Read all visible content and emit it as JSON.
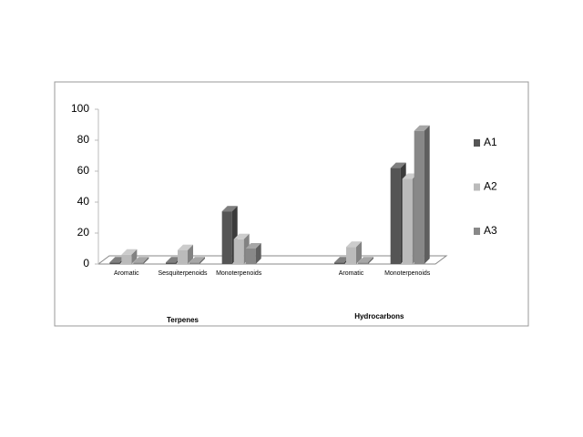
{
  "chart_data": {
    "type": "bar3d",
    "categories": [
      "Aromatic",
      "Sesquiterpenoids",
      "Monoterpenoids",
      null,
      "Aromatic",
      "Monoterpenoids"
    ],
    "groups": [
      "Terpenes",
      "Hydrocarbons"
    ],
    "series": [
      {
        "name": "A1",
        "color": "#555555",
        "values": [
          1,
          1,
          34,
          null,
          1,
          62
        ]
      },
      {
        "name": "A2",
        "color": "#bbbbbb",
        "values": [
          6,
          9,
          16,
          null,
          11,
          55
        ]
      },
      {
        "name": "A3",
        "color": "#888888",
        "values": [
          1,
          1,
          10,
          null,
          1,
          86
        ]
      }
    ],
    "ylim": [
      0,
      100
    ],
    "yticks": [
      0,
      20,
      40,
      60,
      80,
      100
    ],
    "grid": false,
    "legend": "right"
  }
}
